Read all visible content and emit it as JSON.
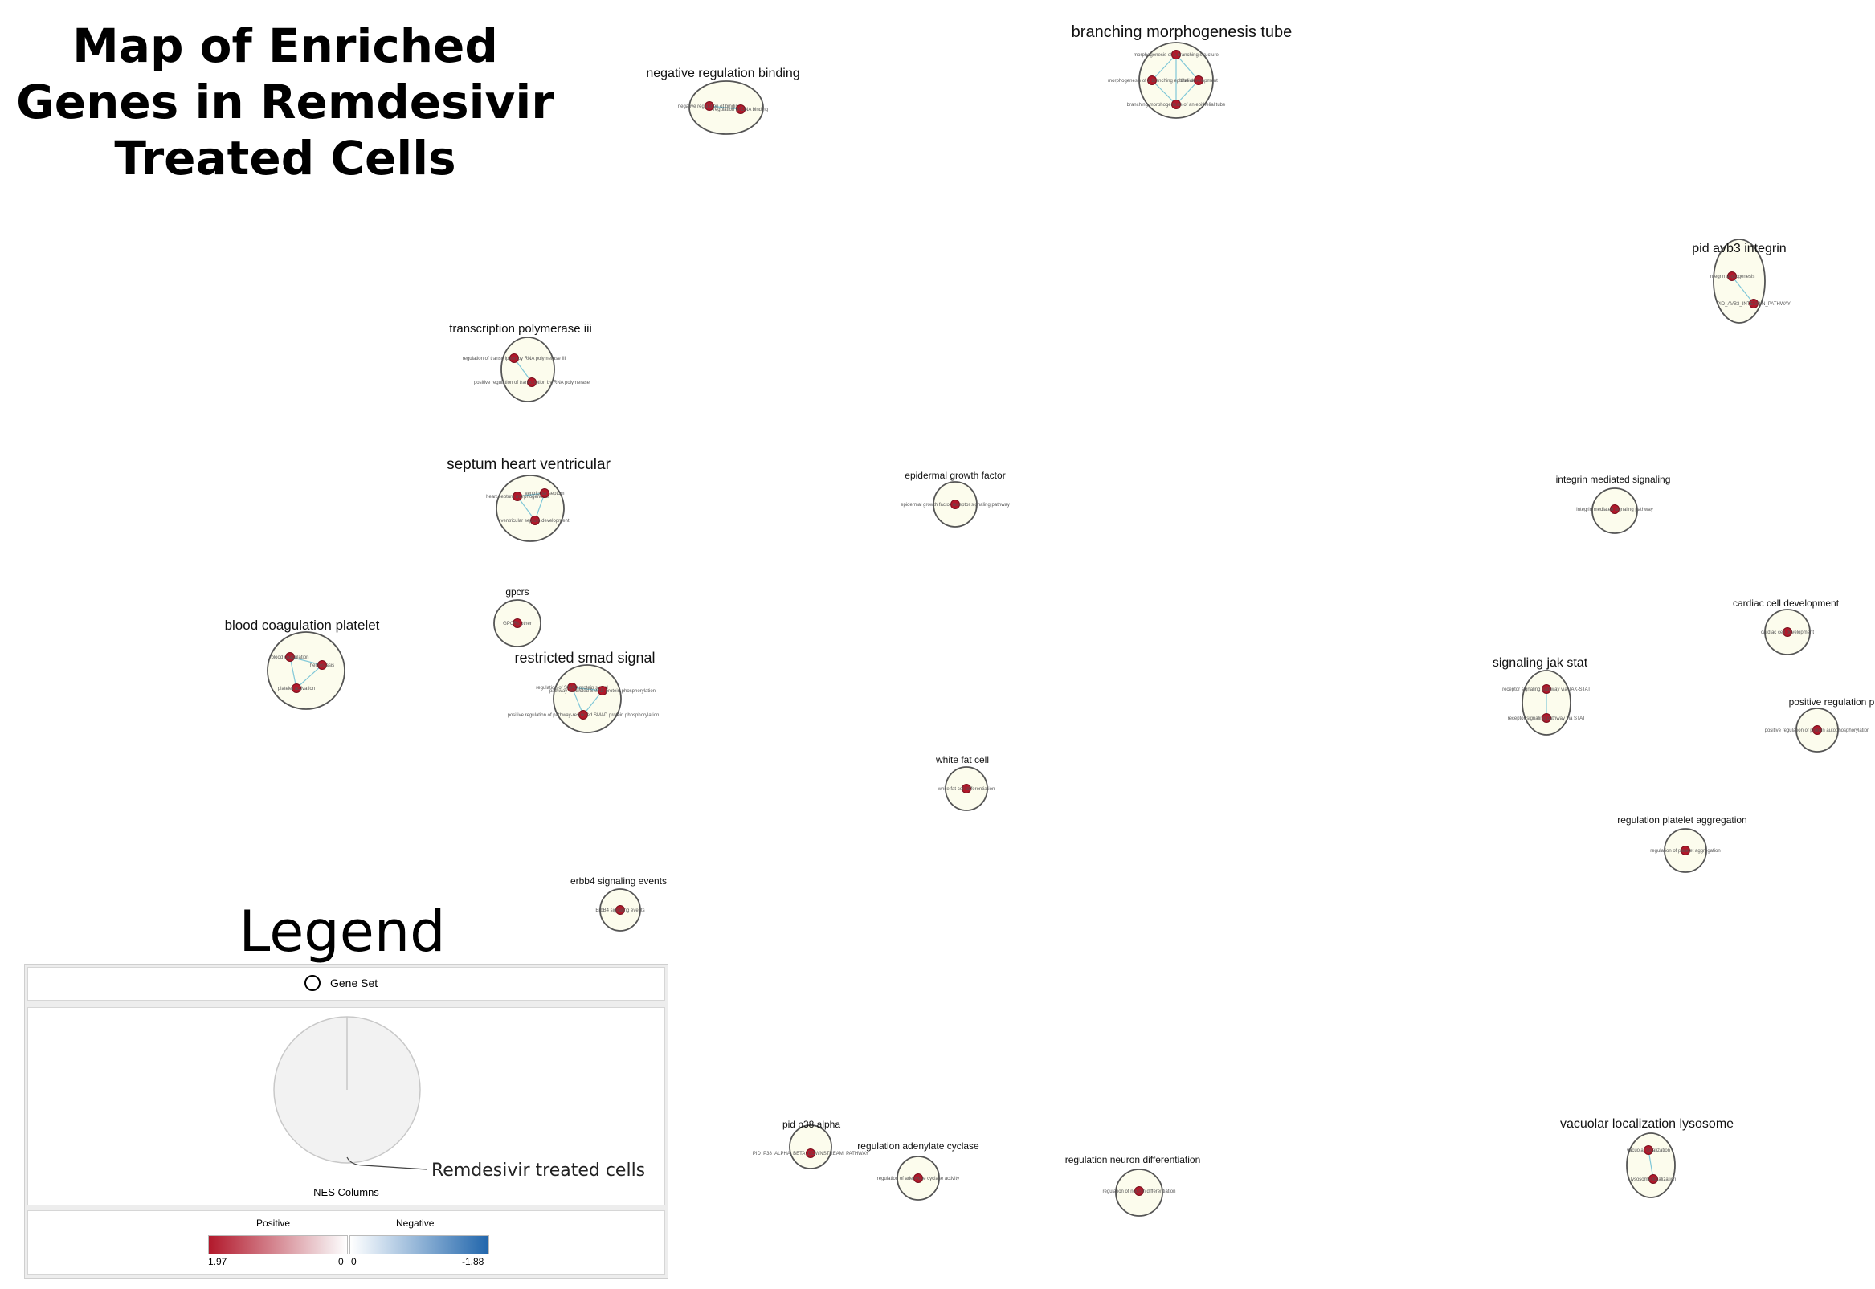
{
  "title": {
    "lines": [
      "Map of Enriched",
      "Genes in Remdesivir",
      "Treated Cells"
    ]
  },
  "clusters": [
    {
      "label": "negative regulation binding",
      "nodes": [
        "negative regulation of binding",
        "regulation of DNA binding"
      ]
    },
    {
      "label": "branching morphogenesis tube",
      "nodes": [
        "morphogenesis of a branching structure",
        "morphogenesis of a branching epithelium",
        "tube development",
        "branching morphogenesis of an epithelial tube"
      ]
    },
    {
      "label": "pid avb3 integrin",
      "nodes": [
        "integrin angiogenesis",
        "PID_AVB3_INTEGRIN_PATHWAY"
      ]
    },
    {
      "label": "transcription polymerase iii",
      "nodes": [
        "regulation of transcription by RNA polymerase III",
        "positive regulation of transcription by RNA polymerase"
      ]
    },
    {
      "label": "septum heart ventricular",
      "nodes": [
        "heart septum morphogenesis",
        "ventricular septum",
        "ventricular septum development"
      ]
    },
    {
      "label": "epidermal growth factor",
      "nodes": [
        "epidermal growth factor receptor signaling pathway"
      ]
    },
    {
      "label": "integrin mediated signaling",
      "nodes": [
        "integrin mediated signaling pathway"
      ]
    },
    {
      "label": "gpcrs",
      "nodes": [
        "GPCRs other"
      ]
    },
    {
      "label": "blood coagulation platelet",
      "nodes": [
        "blood coagulation",
        "hemostasis",
        "platelet activation"
      ]
    },
    {
      "label": "restricted smad signal",
      "nodes": [
        "regulation of SMAD protein signal",
        "pathway-restricted SMAD protein phosphorylation",
        "positive regulation of pathway-restricted SMAD protein phosphorylation"
      ]
    },
    {
      "label": "cardiac cell development",
      "nodes": [
        "cardiac cell development"
      ]
    },
    {
      "label": "signaling jak stat",
      "nodes": [
        "receptor signaling pathway via JAK-STAT",
        "receptor signaling pathway via STAT"
      ]
    },
    {
      "label": "positive regulation protein",
      "nodes": [
        "positive regulation of protein autophosphorylation"
      ]
    },
    {
      "label": "white fat cell",
      "nodes": [
        "white fat cell differentiation"
      ]
    },
    {
      "label": "regulation platelet aggregation",
      "nodes": [
        "regulation of platelet aggregation"
      ]
    },
    {
      "label": "erbb4 signaling events",
      "nodes": [
        "ErbB4 signaling events"
      ]
    },
    {
      "label": "pid p38 alpha",
      "nodes": [
        "PID_P38_ALPHA_BETA_DOWNSTREAM_PATHWAY"
      ]
    },
    {
      "label": "regulation adenylate cyclase",
      "nodes": [
        "regulation of adenylate cyclase activity"
      ]
    },
    {
      "label": "regulation neuron differentiation",
      "nodes": [
        "regulation of neuron differentiation"
      ]
    },
    {
      "label": "vacuolar localization lysosome",
      "nodes": [
        "vacuolar localization",
        "lysosome localization"
      ]
    }
  ],
  "legend": {
    "heading": "Legend",
    "gene_set_label": "Gene Set",
    "nes_caption": "NES Columns",
    "series_name": "Remdesivir treated cells",
    "positive_label": "Positive",
    "negative_label": "Negative",
    "pos_max": "1.97",
    "pos_zero": "0",
    "neg_zero": "0",
    "neg_min": "-1.88"
  },
  "colors": {
    "node": "#b2182b",
    "cluster_fill": "#fcfced",
    "edge": "#7fc7d8",
    "positive": "#b2182b",
    "negative": "#2166ac"
  }
}
